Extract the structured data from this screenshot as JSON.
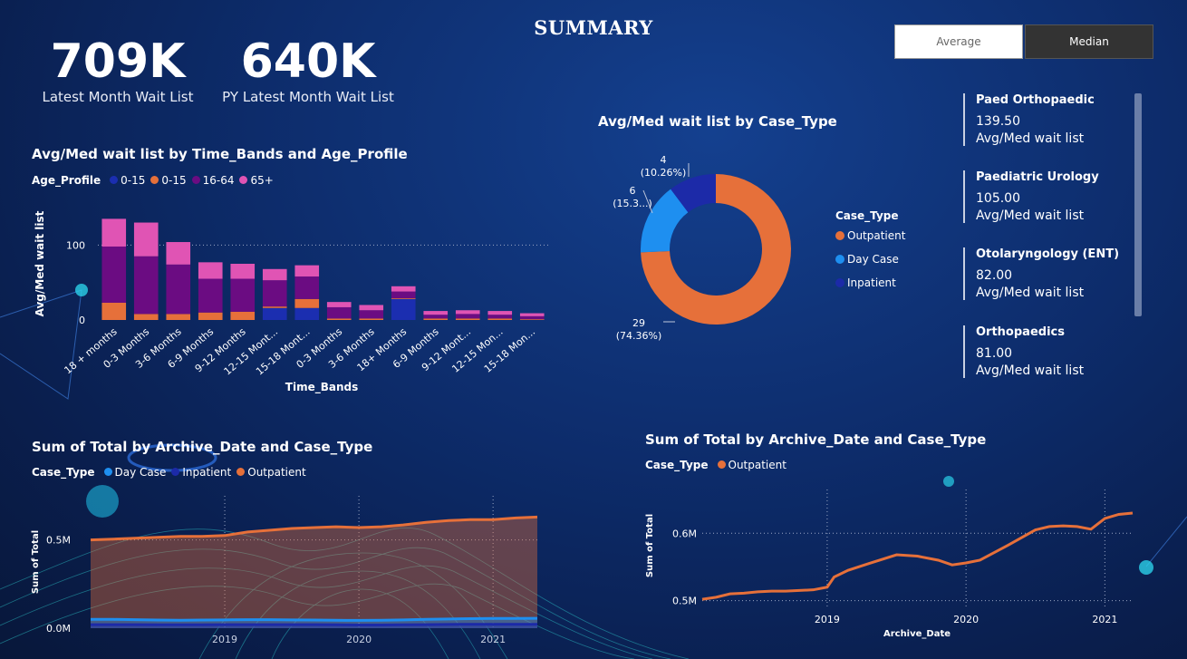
{
  "page": {
    "title": "SUMMARY"
  },
  "kpis": [
    {
      "value": "709K",
      "label": "Latest Month Wait List"
    },
    {
      "value": "640K",
      "label": "PY Latest Month Wait List"
    }
  ],
  "toggle": {
    "average_label": "Average",
    "median_label": "Median"
  },
  "cards": [
    {
      "name": "Paed Orthopaedic",
      "value": "139.50",
      "label": "Avg/Med wait list"
    },
    {
      "name": "Paediatric Urology",
      "value": "105.00",
      "label": "Avg/Med wait list"
    },
    {
      "name": "Otolaryngology (ENT)",
      "value": "82.00",
      "label": "Avg/Med wait list"
    },
    {
      "name": "Orthopaedics",
      "value": "81.00",
      "label": "Avg/Med wait list"
    }
  ],
  "colors": {
    "outpatient": "#e6703a",
    "day_case": "#1e8ff0",
    "inpatient": "#1c2aa8",
    "age_0_15_blue": "#1b2eb0",
    "age_0_15_orange": "#e6703a",
    "age_16_64": "#6b0c82",
    "age_65_plus": "#e054b4"
  },
  "chart_data": [
    {
      "type": "bar",
      "title": "Avg/Med wait list by Time_Bands and Age_Profile",
      "xlabel": "Time_Bands",
      "ylabel": "Avg/Med wait list",
      "legend_title": "Age_Profile",
      "categories": [
        "18 + months",
        "0-3 Months",
        "3-6 Months",
        "6-9 Months",
        "9-12 Months",
        "12-15 Mont...",
        "15-18 Mont...",
        "0-3 Months",
        "3-6 Months",
        "18+ Months",
        "6-9 Months",
        "9-12 Mont...",
        "12-15 Mon...",
        "15-18 Mon..."
      ],
      "ylim": [
        0,
        150
      ],
      "yticks": [
        {
          "v": 0,
          "label": "0"
        },
        {
          "v": 100,
          "label": "100"
        }
      ],
      "series": [
        {
          "name": "0-15",
          "color": "#1b2eb0",
          "values": [
            0,
            0,
            0,
            0,
            0,
            16,
            16,
            0,
            0,
            28,
            0,
            0,
            0,
            0
          ]
        },
        {
          "name": "0-15",
          "color": "#e6703a",
          "values": [
            23,
            8,
            8,
            10,
            11,
            2,
            12,
            2,
            2,
            1,
            2,
            2,
            2,
            1
          ]
        },
        {
          "name": "16-64",
          "color": "#6b0c82",
          "values": [
            75,
            77,
            66,
            45,
            44,
            35,
            30,
            15,
            11,
            9,
            5,
            6,
            5,
            4
          ]
        },
        {
          "name": "65+",
          "color": "#e054b4",
          "values": [
            37,
            45,
            30,
            22,
            20,
            15,
            15,
            7,
            7,
            7,
            5,
            5,
            5,
            4
          ]
        }
      ]
    },
    {
      "type": "pie",
      "title": "Avg/Med wait list by Case_Type",
      "legend_title": "Case_Type",
      "slices": [
        {
          "name": "Outpatient",
          "value": 29,
          "pct": "(74.36%)",
          "color": "#e6703a"
        },
        {
          "name": "Day Case",
          "value": 6,
          "pct": "(15.3...)",
          "color": "#1e8ff0"
        },
        {
          "name": "Inpatient",
          "value": 4,
          "pct": "(10.26%)",
          "color": "#1c2aa8"
        }
      ]
    },
    {
      "type": "area",
      "title": "Sum of Total by Archive_Date and Case_Type",
      "ylabel": "Sum of Total",
      "legend_title": "Case_Type",
      "legend": [
        {
          "name": "Day Case",
          "color": "#1e8ff0"
        },
        {
          "name": "Inpatient",
          "color": "#1c2aa8"
        },
        {
          "name": "Outpatient",
          "color": "#e6703a"
        }
      ],
      "x": [
        2018.0,
        2018.17,
        2018.33,
        2018.5,
        2018.67,
        2018.83,
        2019.0,
        2019.17,
        2019.33,
        2019.5,
        2019.67,
        2019.83,
        2020.0,
        2020.17,
        2020.33,
        2020.5,
        2020.67,
        2020.83,
        2021.0,
        2021.17,
        2021.33
      ],
      "xticks": [
        {
          "v": 2019,
          "label": "2019"
        },
        {
          "v": 2020,
          "label": "2020"
        },
        {
          "v": 2021,
          "label": "2021"
        }
      ],
      "ylim": [
        0,
        0.75
      ],
      "yticks": [
        {
          "v": 0,
          "label": "0.0M"
        },
        {
          "v": 0.5,
          "label": "0.5M"
        }
      ],
      "series": [
        {
          "name": "Outpatient",
          "color": "#e6703a",
          "values": [
            0.5,
            0.505,
            0.51,
            0.515,
            0.52,
            0.52,
            0.525,
            0.545,
            0.555,
            0.565,
            0.57,
            0.575,
            0.57,
            0.575,
            0.585,
            0.6,
            0.61,
            0.615,
            0.615,
            0.625,
            0.63
          ]
        },
        {
          "name": "Day Case",
          "color": "#1e8ff0",
          "values": [
            0.05,
            0.05,
            0.048,
            0.046,
            0.045,
            0.046,
            0.047,
            0.048,
            0.048,
            0.047,
            0.046,
            0.045,
            0.044,
            0.045,
            0.047,
            0.05,
            0.052,
            0.054,
            0.055,
            0.055,
            0.056
          ]
        },
        {
          "name": "Inpatient",
          "color": "#1c2aa8",
          "values": [
            0.02,
            0.02,
            0.02,
            0.019,
            0.019,
            0.019,
            0.02,
            0.02,
            0.02,
            0.02,
            0.02,
            0.019,
            0.018,
            0.018,
            0.019,
            0.02,
            0.021,
            0.022,
            0.022,
            0.022,
            0.022
          ]
        }
      ]
    },
    {
      "type": "line",
      "title": "Sum of Total by Archive_Date and Case_Type",
      "xlabel": "Archive_Date",
      "ylabel": "Sum of Total",
      "legend_title": "Case_Type",
      "legend": [
        {
          "name": "Outpatient",
          "color": "#e6703a"
        }
      ],
      "x": [
        2018.1,
        2018.2,
        2018.3,
        2018.4,
        2018.5,
        2018.6,
        2018.7,
        2018.8,
        2018.9,
        2019.0,
        2019.05,
        2019.15,
        2019.3,
        2019.5,
        2019.65,
        2019.8,
        2019.9,
        2020.0,
        2020.1,
        2020.3,
        2020.5,
        2020.6,
        2020.7,
        2020.8,
        2020.9,
        2021.0,
        2021.1,
        2021.2
      ],
      "xticks": [
        {
          "v": 2019,
          "label": "2019"
        },
        {
          "v": 2020,
          "label": "2020"
        },
        {
          "v": 2021,
          "label": "2021"
        }
      ],
      "ylim": [
        0.49,
        0.665
      ],
      "yticks": [
        {
          "v": 0.5,
          "label": "0.5M"
        },
        {
          "v": 0.6,
          "label": "0.6M"
        }
      ],
      "series": [
        {
          "name": "Outpatient",
          "color": "#e6703a",
          "values": [
            0.502,
            0.505,
            0.51,
            0.511,
            0.513,
            0.514,
            0.514,
            0.515,
            0.516,
            0.52,
            0.535,
            0.545,
            0.555,
            0.568,
            0.566,
            0.56,
            0.553,
            0.556,
            0.56,
            0.582,
            0.605,
            0.61,
            0.611,
            0.61,
            0.606,
            0.622,
            0.628,
            0.63
          ]
        }
      ]
    }
  ]
}
